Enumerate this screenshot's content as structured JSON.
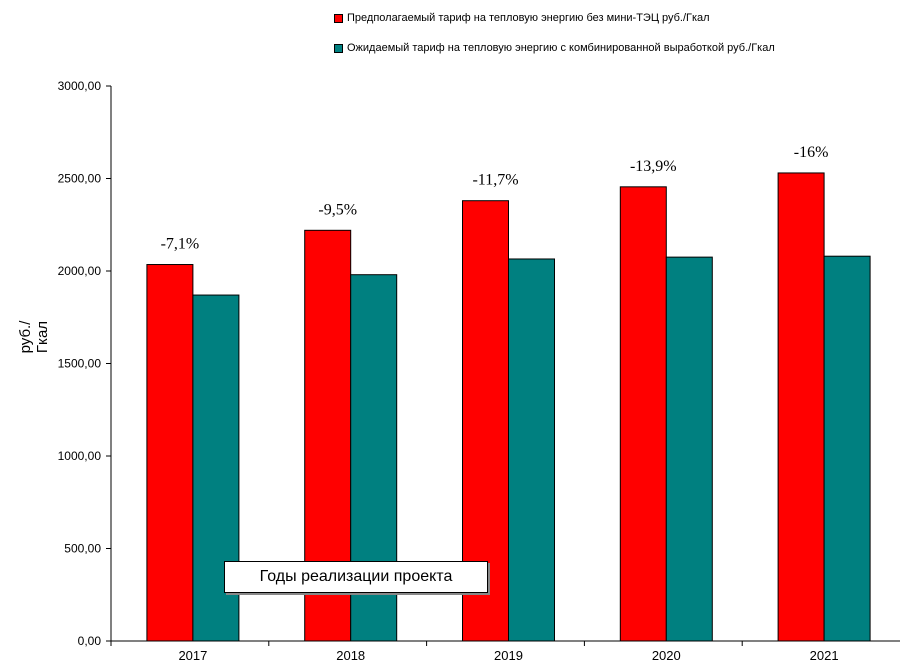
{
  "chart_data": {
    "type": "bar",
    "categories": [
      "2017",
      "2018",
      "2019",
      "2020",
      "2021"
    ],
    "series": [
      {
        "name": "Предполагаемый  тариф на тепловую энергию без мини-ТЭЦ руб./Гкал",
        "color": "#ff0000",
        "values": [
          2035,
          2220,
          2380,
          2455,
          2530
        ]
      },
      {
        "name": "Ожидаемый тариф на тепловую энергию с комбинированной выработкой руб./Гкал",
        "color": "#008080",
        "values": [
          1870,
          1980,
          2065,
          2075,
          2080
        ]
      }
    ],
    "bar_labels": [
      "-7,1%",
      "-9,5%",
      "-11,7%",
      "-13,9%",
      "-16%"
    ],
    "ylabel": "руб./Гкал",
    "ylim": [
      0,
      3000
    ],
    "yticks": [
      "0,00",
      "500,00",
      "1000,00",
      "1500,00",
      "2000,00",
      "2500,00",
      "3000,00"
    ],
    "annotation": "Годы реализации проекта",
    "grid": false,
    "legend_position": "top"
  }
}
